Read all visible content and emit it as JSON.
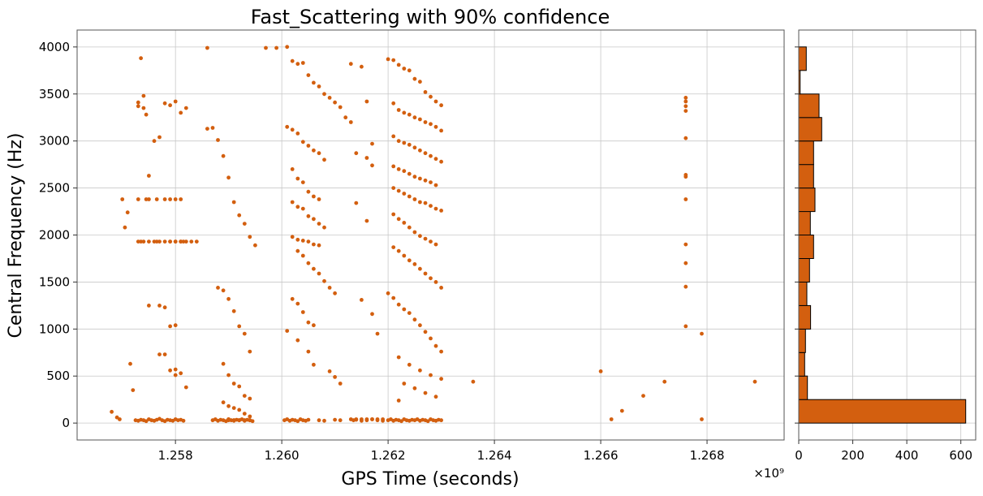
{
  "chart_data": [
    {
      "type": "scatter",
      "title": "Fast_Scattering with 90% confidence",
      "xlabel": "GPS Time (seconds)",
      "ylabel": "Central Frequency (Hz)",
      "x_offset_text": "×10⁹",
      "x_unit_multiplier": 1000000000,
      "xlim": [
        1.25615,
        1.26945
      ],
      "ylim": [
        -180,
        4180
      ],
      "xticks": [
        1.258,
        1.26,
        1.262,
        1.264,
        1.266,
        1.268
      ],
      "xtick_labels": [
        "1.258",
        "1.260",
        "1.262",
        "1.264",
        "1.266",
        "1.268"
      ],
      "yticks": [
        0,
        500,
        1000,
        1500,
        2000,
        2500,
        3000,
        3500,
        4000
      ],
      "ytick_labels": [
        "0",
        "500",
        "1000",
        "1500",
        "2000",
        "2500",
        "3000",
        "3500",
        "4000"
      ],
      "grid": true,
      "marker_color": "#d35f0f",
      "x": [
        1.2568,
        1.2569,
        1.25695,
        1.257,
        1.25705,
        1.2571,
        1.25715,
        1.2572,
        1.2573,
        1.2573,
        1.25735,
        1.2574,
        1.2574,
        1.25745,
        1.2575,
        1.2576,
        1.2577,
        1.2578,
        1.2579,
        1.258,
        1.2581,
        1.2582,
        1.2573,
        1.25745,
        1.2575,
        1.25765,
        1.2578,
        1.2579,
        1.258,
        1.2581,
        1.2573,
        1.25735,
        1.2574,
        1.2575,
        1.2576,
        1.25765,
        1.2577,
        1.2578,
        1.2579,
        1.2579,
        1.258,
        1.258,
        1.2581,
        1.2581,
        1.25815,
        1.2582,
        1.2583,
        1.2584,
        1.2575,
        1.2577,
        1.2578,
        1.2579,
        1.258,
        1.2577,
        1.2578,
        1.2579,
        1.258,
        1.258,
        1.2581,
        1.2582,
        1.2586,
        1.2587,
        1.2588,
        1.2589,
        1.259,
        1.2591,
        1.2592,
        1.2593,
        1.2594,
        1.2595,
        1.2588,
        1.2589,
        1.259,
        1.2591,
        1.2592,
        1.2593,
        1.2594,
        1.2589,
        1.259,
        1.2591,
        1.2592,
        1.2593,
        1.2594,
        1.2589,
        1.259,
        1.2591,
        1.2592,
        1.2593,
        1.2594,
        1.259,
        1.2591,
        1.2592,
        1.2593,
        1.2594,
        1.259,
        1.2591,
        1.2592,
        1.2593,
        1.2594,
        1.2586,
        1.2597,
        1.2599,
        1.2601,
        1.2602,
        1.2603,
        1.2604,
        1.2605,
        1.2606,
        1.2607,
        1.2608,
        1.2609,
        1.261,
        1.2611,
        1.2612,
        1.2613,
        1.2601,
        1.2602,
        1.2603,
        1.2604,
        1.2605,
        1.2606,
        1.2607,
        1.2608,
        1.2602,
        1.2603,
        1.2604,
        1.2605,
        1.2606,
        1.2607,
        1.2602,
        1.2603,
        1.2604,
        1.2605,
        1.2606,
        1.2607,
        1.2608,
        1.2602,
        1.2603,
        1.2604,
        1.2605,
        1.2606,
        1.2607,
        1.2603,
        1.2604,
        1.2605,
        1.2606,
        1.2607,
        1.2608,
        1.2609,
        1.261,
        1.2602,
        1.2603,
        1.2604,
        1.2605,
        1.2606,
        1.2601,
        1.2603,
        1.2605,
        1.2606,
        1.2609,
        1.261,
        1.2611,
        1.2613,
        1.2614,
        1.2615,
        1.2616,
        1.2617,
        1.2618,
        1.2619,
        1.2613,
        1.2615,
        1.2616,
        1.2617,
        1.2614,
        1.2616,
        1.2617,
        1.2614,
        1.2616,
        1.2615,
        1.2617,
        1.2618,
        1.262,
        1.2621,
        1.2622,
        1.2623,
        1.2624,
        1.2625,
        1.2626,
        1.2627,
        1.2628,
        1.2629,
        1.263,
        1.2621,
        1.2622,
        1.2623,
        1.2624,
        1.2625,
        1.2626,
        1.2627,
        1.2628,
        1.2629,
        1.263,
        1.2621,
        1.2622,
        1.2623,
        1.2624,
        1.2625,
        1.2626,
        1.2627,
        1.2628,
        1.2629,
        1.263,
        1.2621,
        1.2622,
        1.2623,
        1.2624,
        1.2625,
        1.2626,
        1.2627,
        1.2628,
        1.2629,
        1.2621,
        1.2622,
        1.2623,
        1.2624,
        1.2625,
        1.2626,
        1.2627,
        1.2628,
        1.2629,
        1.263,
        1.2621,
        1.2622,
        1.2623,
        1.2624,
        1.2625,
        1.2626,
        1.2627,
        1.2628,
        1.2629,
        1.2621,
        1.2622,
        1.2623,
        1.2624,
        1.2625,
        1.2626,
        1.2627,
        1.2628,
        1.2629,
        1.263,
        1.262,
        1.2621,
        1.2622,
        1.2623,
        1.2624,
        1.2625,
        1.2626,
        1.2627,
        1.2628,
        1.2629,
        1.263,
        1.2622,
        1.2624,
        1.2626,
        1.2628,
        1.263,
        1.2623,
        1.2625,
        1.2627,
        1.2629,
        1.2622,
        1.2636,
        1.266,
        1.2662,
        1.2664,
        1.2668,
        1.2672,
        1.2689,
        1.2676,
        1.2676,
        1.2676,
        1.2676,
        1.2676,
        1.2676,
        1.2676,
        1.2676,
        1.2676,
        1.2676,
        1.2676,
        1.2676,
        1.2679,
        1.2679
      ],
      "y": [
        120,
        60,
        40,
        2380,
        2080,
        2240,
        630,
        350,
        3410,
        3370,
        3880,
        3480,
        3350,
        3280,
        2630,
        3000,
        3040,
        3400,
        3380,
        3420,
        3300,
        3350,
        2380,
        2380,
        2380,
        2380,
        2380,
        2380,
        2380,
        2380,
        1930,
        1930,
        1930,
        1930,
        1930,
        1930,
        1930,
        1930,
        1930,
        1930,
        1930,
        1930,
        1930,
        1930,
        1930,
        1930,
        1930,
        1930,
        1250,
        1250,
        1230,
        1030,
        1040,
        730,
        730,
        560,
        570,
        510,
        530,
        380,
        3130,
        3140,
        3010,
        2840,
        2610,
        2350,
        2210,
        2120,
        1980,
        1890,
        1440,
        1410,
        1320,
        1190,
        1030,
        950,
        760,
        630,
        510,
        420,
        390,
        290,
        260,
        220,
        180,
        160,
        140,
        100,
        70,
        40,
        30,
        30,
        30,
        30,
        30,
        30,
        30,
        30,
        30,
        3990,
        3990,
        3990,
        4000,
        3850,
        3820,
        3830,
        3700,
        3620,
        3580,
        3500,
        3460,
        3410,
        3360,
        3250,
        3200,
        3150,
        3120,
        3080,
        2990,
        2950,
        2900,
        2870,
        2800,
        2700,
        2600,
        2560,
        2460,
        2410,
        2380,
        2350,
        2300,
        2280,
        2200,
        2170,
        2120,
        2080,
        1980,
        1950,
        1940,
        1930,
        1900,
        1890,
        1830,
        1780,
        1700,
        1640,
        1590,
        1510,
        1440,
        1380,
        1320,
        1270,
        1180,
        1070,
        1040,
        980,
        880,
        760,
        620,
        550,
        490,
        420,
        40,
        40,
        40,
        40,
        40,
        40,
        40,
        3820,
        3790,
        3420,
        2970,
        2870,
        2820,
        2740,
        2340,
        2150,
        1310,
        1160,
        950,
        3870,
        3860,
        3810,
        3770,
        3750,
        3660,
        3630,
        3520,
        3470,
        3420,
        3380,
        3400,
        3330,
        3300,
        3280,
        3250,
        3230,
        3200,
        3180,
        3150,
        3110,
        3050,
        3000,
        2980,
        2960,
        2930,
        2900,
        2870,
        2840,
        2810,
        2780,
        2730,
        2700,
        2680,
        2650,
        2620,
        2600,
        2580,
        2560,
        2530,
        2500,
        2470,
        2440,
        2410,
        2380,
        2350,
        2340,
        2310,
        2280,
        2260,
        2220,
        2170,
        2130,
        2080,
        2030,
        1990,
        1960,
        1930,
        1900,
        1870,
        1830,
        1780,
        1730,
        1690,
        1640,
        1590,
        1540,
        1500,
        1440,
        1380,
        1330,
        1260,
        1210,
        1170,
        1100,
        1040,
        970,
        900,
        820,
        760,
        700,
        620,
        560,
        510,
        470,
        420,
        370,
        320,
        280,
        240,
        440,
        550,
        40,
        130,
        290,
        440,
        440,
        3460,
        3420,
        3370,
        3320,
        3030,
        2640,
        2620,
        2380,
        1900,
        1700,
        1450,
        1030,
        950,
        40
      ],
      "base_cluster_x": [
        1.25725,
        1.2573,
        1.25735,
        1.2574,
        1.25745,
        1.2575,
        1.25755,
        1.2576,
        1.25765,
        1.2577,
        1.25775,
        1.2578,
        1.25785,
        1.2579,
        1.25795,
        1.258,
        1.25805,
        1.2581,
        1.25815,
        1.2587,
        1.25875,
        1.2588,
        1.25885,
        1.2589,
        1.25895,
        1.259,
        1.25905,
        1.2591,
        1.25915,
        1.2592,
        1.25925,
        1.2593,
        1.25935,
        1.2594,
        1.25945,
        1.26005,
        1.2601,
        1.26015,
        1.2602,
        1.26025,
        1.2603,
        1.26035,
        1.2604,
        1.26045,
        1.2605,
        1.2607,
        1.2608,
        1.261,
        1.2611,
        1.26135,
        1.2614,
        1.2615,
        1.2616,
        1.2617,
        1.2618,
        1.2619,
        1.262,
        1.26205,
        1.2621,
        1.26215,
        1.2622,
        1.26225,
        1.2623,
        1.26235,
        1.2624,
        1.26245,
        1.2625,
        1.26255,
        1.2626,
        1.26265,
        1.2627,
        1.26275,
        1.2628,
        1.26285,
        1.2629,
        1.26295,
        1.263
      ],
      "base_cluster_y": [
        30,
        25,
        35,
        30,
        20,
        40,
        30,
        25,
        35,
        45,
        30,
        20,
        35,
        30,
        25,
        40,
        30,
        35,
        25,
        30,
        40,
        25,
        35,
        30,
        20,
        40,
        30,
        25,
        35,
        30,
        40,
        25,
        35,
        30,
        20,
        30,
        40,
        25,
        35,
        30,
        20,
        40,
        30,
        25,
        35,
        30,
        25,
        35,
        30,
        30,
        35,
        25,
        30,
        40,
        30,
        25,
        30,
        40,
        25,
        35,
        30,
        20,
        40,
        30,
        25,
        35,
        30,
        40,
        25,
        35,
        30,
        20,
        40,
        30,
        25,
        35,
        30
      ]
    },
    {
      "type": "bar",
      "orientation": "horizontal",
      "bin_edges": [
        0,
        250,
        500,
        750,
        1000,
        1250,
        1500,
        1750,
        2000,
        2250,
        2500,
        2750,
        3000,
        3250,
        3500,
        3750,
        4000
      ],
      "values": [
        618,
        32,
        22,
        25,
        44,
        30,
        40,
        55,
        43,
        60,
        55,
        55,
        85,
        75,
        5,
        28
      ],
      "xlim": [
        0,
        655
      ],
      "ylim": [
        -180,
        4180
      ],
      "xticks": [
        0,
        200,
        400,
        600
      ],
      "xtick_labels": [
        "0",
        "200",
        "400",
        "600"
      ],
      "yticks": [
        0,
        500,
        1000,
        1500,
        2000,
        2500,
        3000,
        3500,
        4000
      ],
      "grid": true,
      "bar_color": "#d35f0f",
      "edge_color": "#000000"
    }
  ]
}
